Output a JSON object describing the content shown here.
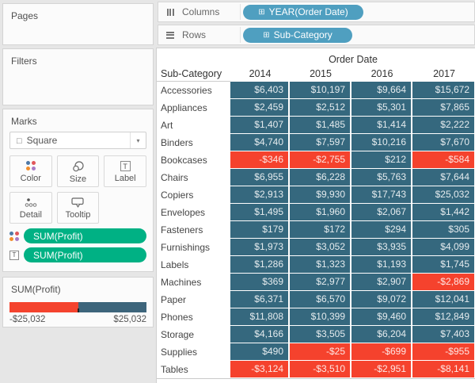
{
  "colors": {
    "cell_positive": "#35687e",
    "cell_negative": "#f5422d",
    "dimension_pill": "#4f9fc0",
    "measure_pill": "#00b184",
    "legend_negative": "#f4432e",
    "legend_positive": "#3d657b"
  },
  "left_panel": {
    "pages": {
      "title": "Pages"
    },
    "filters": {
      "title": "Filters"
    },
    "marks": {
      "title": "Marks",
      "mark_type": "Square",
      "color_label": "Color",
      "size_label": "Size",
      "label_label": "Label",
      "detail_label": "Detail",
      "tooltip_label": "Tooltip",
      "color_pill": "SUM(Profit)",
      "label_pill": "SUM(Profit)"
    },
    "legend": {
      "title": "SUM(Profit)",
      "min_label": "-$25,032",
      "max_label": "$25,032"
    }
  },
  "shelves": {
    "columns_label": "Columns",
    "columns_pill": "YEAR(Order Date)",
    "rows_label": "Rows",
    "rows_pill": "Sub-Category"
  },
  "chart_data": {
    "type": "heatmap",
    "spanning_header": "Order Date",
    "row_header": "Sub-Category",
    "columns": [
      "2014",
      "2015",
      "2016",
      "2017"
    ],
    "rows": [
      {
        "label": "Accessories",
        "values": [
          "$6,403",
          "$10,197",
          "$9,664",
          "$15,672"
        ]
      },
      {
        "label": "Appliances",
        "values": [
          "$2,459",
          "$2,512",
          "$5,301",
          "$7,865"
        ]
      },
      {
        "label": "Art",
        "values": [
          "$1,407",
          "$1,485",
          "$1,414",
          "$2,222"
        ]
      },
      {
        "label": "Binders",
        "values": [
          "$4,740",
          "$7,597",
          "$10,216",
          "$7,670"
        ]
      },
      {
        "label": "Bookcases",
        "values": [
          "-$346",
          "-$2,755",
          "$212",
          "-$584"
        ]
      },
      {
        "label": "Chairs",
        "values": [
          "$6,955",
          "$6,228",
          "$5,763",
          "$7,644"
        ]
      },
      {
        "label": "Copiers",
        "values": [
          "$2,913",
          "$9,930",
          "$17,743",
          "$25,032"
        ]
      },
      {
        "label": "Envelopes",
        "values": [
          "$1,495",
          "$1,960",
          "$2,067",
          "$1,442"
        ]
      },
      {
        "label": "Fasteners",
        "values": [
          "$179",
          "$172",
          "$294",
          "$305"
        ]
      },
      {
        "label": "Furnishings",
        "values": [
          "$1,973",
          "$3,052",
          "$3,935",
          "$4,099"
        ]
      },
      {
        "label": "Labels",
        "values": [
          "$1,286",
          "$1,323",
          "$1,193",
          "$1,745"
        ]
      },
      {
        "label": "Machines",
        "values": [
          "$369",
          "$2,977",
          "$2,907",
          "-$2,869"
        ]
      },
      {
        "label": "Paper",
        "values": [
          "$6,371",
          "$6,570",
          "$9,072",
          "$12,041"
        ]
      },
      {
        "label": "Phones",
        "values": [
          "$11,808",
          "$10,399",
          "$9,460",
          "$12,849"
        ]
      },
      {
        "label": "Storage",
        "values": [
          "$4,166",
          "$3,505",
          "$6,204",
          "$7,403"
        ]
      },
      {
        "label": "Supplies",
        "values": [
          "$490",
          "-$25",
          "-$699",
          "-$955"
        ]
      },
      {
        "label": "Tables",
        "values": [
          "-$3,124",
          "-$3,510",
          "-$2,951",
          "-$8,141"
        ]
      }
    ]
  }
}
